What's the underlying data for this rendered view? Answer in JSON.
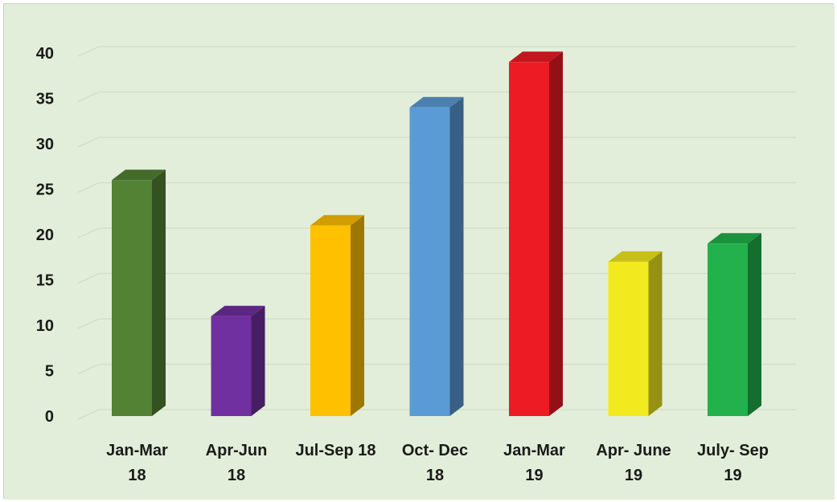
{
  "chart_data": {
    "type": "bar",
    "style": "3d-column",
    "categories": [
      [
        "Jan-Mar",
        "18"
      ],
      [
        "Apr-Jun",
        "18"
      ],
      [
        "Jul-Sep 18"
      ],
      [
        "Oct- Dec",
        "18"
      ],
      [
        "Jan-Mar",
        "19"
      ],
      [
        "Apr- June",
        "19"
      ],
      [
        "July- Sep",
        "19"
      ]
    ],
    "values": [
      26,
      11,
      21,
      34,
      39,
      17,
      19
    ],
    "colors": [
      "#548235",
      "#7030a0",
      "#ffc000",
      "#5b9bd5",
      "#ed1c24",
      "#f2ea1e",
      "#22b14c"
    ],
    "yticks": [
      "0",
      "5",
      "10",
      "15",
      "20",
      "25",
      "30",
      "35",
      "40"
    ],
    "ylim": [
      0,
      40
    ],
    "grid": true,
    "legend": "none",
    "background_color": "#e2eed9",
    "title": "",
    "xlabel": "",
    "ylabel": ""
  }
}
